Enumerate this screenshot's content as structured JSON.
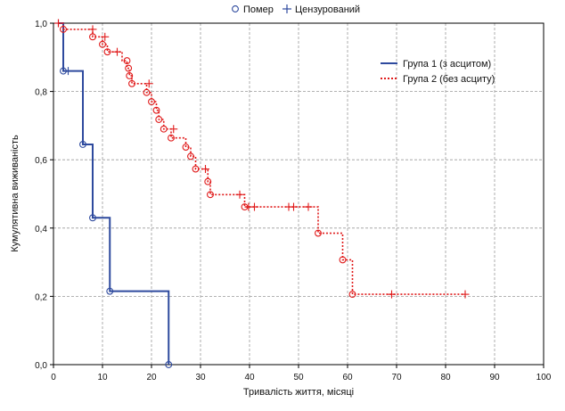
{
  "chart_data": {
    "type": "line",
    "subtype": "kaplan-meier",
    "xlabel": "Тривалість життя, місяці",
    "ylabel": "Кумулятивна виживаність",
    "xlim": [
      0,
      100
    ],
    "ylim": [
      0,
      1
    ],
    "xticks": [
      0,
      10,
      20,
      30,
      40,
      50,
      60,
      70,
      80,
      90,
      100
    ],
    "xtick_labels": [
      "0",
      "10",
      "20",
      "30",
      "40",
      "50",
      "60",
      "70",
      "80",
      "90",
      "100"
    ],
    "yticks": [
      0,
      0.2,
      0.4,
      0.6,
      0.8,
      1.0
    ],
    "ytick_labels": [
      "0,0",
      "0,2",
      "0,4",
      "0,6",
      "0,8",
      "1,0"
    ],
    "grid": true,
    "marker_legend": {
      "death_label": "Помер",
      "censored_label": "Цензурований",
      "position": "top-center"
    },
    "legend_position": "top-right",
    "series": [
      {
        "name": "Група 1 (з асцитом)",
        "color": "#2e4a9e",
        "line_style": "solid",
        "steps": [
          [
            1,
            1.0
          ],
          [
            2,
            0.86
          ],
          [
            6,
            0.645
          ],
          [
            8,
            0.43
          ],
          [
            11.5,
            0.215
          ],
          [
            23.5,
            0.0
          ]
        ],
        "deaths": [
          [
            2,
            0.86
          ],
          [
            6,
            0.645
          ],
          [
            8,
            0.43
          ],
          [
            11.5,
            0.215
          ],
          [
            23.5,
            0.0
          ]
        ],
        "censored": [
          [
            1,
            1.0
          ],
          [
            3,
            0.86
          ]
        ]
      },
      {
        "name": "Група 2 (без асциту)",
        "color": "#e01a1a",
        "line_style": "dotted",
        "steps": [
          [
            1,
            1.0
          ],
          [
            2,
            0.982
          ],
          [
            8,
            0.96
          ],
          [
            10,
            0.938
          ],
          [
            11,
            0.916
          ],
          [
            14,
            0.89
          ],
          [
            15,
            0.868
          ],
          [
            15.5,
            0.846
          ],
          [
            16,
            0.823
          ],
          [
            19,
            0.797
          ],
          [
            20,
            0.77
          ],
          [
            21,
            0.745
          ],
          [
            21.5,
            0.718
          ],
          [
            22.5,
            0.69
          ],
          [
            24,
            0.664
          ],
          [
            27,
            0.637
          ],
          [
            28,
            0.61
          ],
          [
            29,
            0.573
          ],
          [
            31.5,
            0.536
          ],
          [
            32,
            0.498
          ],
          [
            39,
            0.462
          ],
          [
            54,
            0.385
          ],
          [
            59,
            0.307
          ],
          [
            61,
            0.206
          ],
          [
            84,
            0.206
          ]
        ],
        "deaths": [
          [
            2,
            0.982
          ],
          [
            8,
            0.96
          ],
          [
            10,
            0.938
          ],
          [
            11,
            0.916
          ],
          [
            15,
            0.89
          ],
          [
            15.3,
            0.868
          ],
          [
            15.5,
            0.846
          ],
          [
            16,
            0.823
          ],
          [
            19,
            0.797
          ],
          [
            20,
            0.77
          ],
          [
            21,
            0.745
          ],
          [
            21.5,
            0.718
          ],
          [
            22.5,
            0.69
          ],
          [
            24,
            0.664
          ],
          [
            27,
            0.637
          ],
          [
            28,
            0.61
          ],
          [
            29,
            0.573
          ],
          [
            31.5,
            0.536
          ],
          [
            32,
            0.498
          ],
          [
            39,
            0.462
          ],
          [
            54,
            0.385
          ],
          [
            59,
            0.307
          ],
          [
            61,
            0.206
          ]
        ],
        "censored": [
          [
            1,
            1.0
          ],
          [
            8,
            0.982
          ],
          [
            10.5,
            0.96
          ],
          [
            13,
            0.916
          ],
          [
            19.5,
            0.823
          ],
          [
            24.5,
            0.69
          ],
          [
            31,
            0.573
          ],
          [
            38,
            0.498
          ],
          [
            39.8,
            0.462
          ],
          [
            41,
            0.462
          ],
          [
            48,
            0.462
          ],
          [
            49,
            0.462
          ],
          [
            52,
            0.462
          ],
          [
            69,
            0.206
          ],
          [
            84,
            0.206
          ]
        ]
      }
    ]
  }
}
